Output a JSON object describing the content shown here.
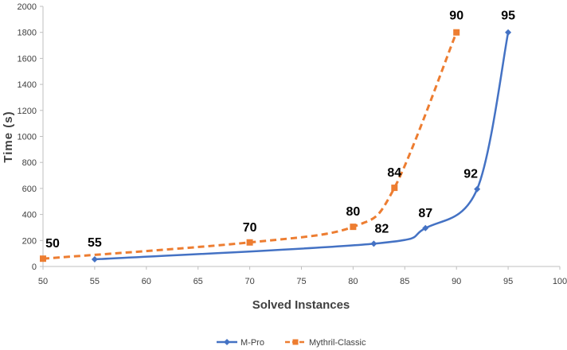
{
  "chart_data": {
    "type": "line",
    "title": "",
    "xlabel": "Solved Instances",
    "ylabel": "Time (s)",
    "xlim": [
      50,
      100
    ],
    "ylim": [
      0,
      2000
    ],
    "x_ticks": [
      50,
      55,
      60,
      65,
      70,
      75,
      80,
      85,
      90,
      95,
      100
    ],
    "y_ticks": [
      0,
      200,
      400,
      600,
      800,
      1000,
      1200,
      1400,
      1600,
      1800,
      2000
    ],
    "grid": false,
    "smooth": true,
    "legend_position": "bottom",
    "series": [
      {
        "name": "M-Pro",
        "color": "#4472c4",
        "line_style": "solid",
        "marker": "diamond",
        "points": [
          {
            "x": 55,
            "y": 55,
            "label": "55"
          },
          {
            "x": 82,
            "y": 175,
            "label": "82"
          },
          {
            "x": 87,
            "y": 295,
            "label": "87"
          },
          {
            "x": 92,
            "y": 595,
            "label": "92"
          },
          {
            "x": 95,
            "y": 1800,
            "label": "95"
          }
        ]
      },
      {
        "name": "Mythril-Classic",
        "color": "#ed7d31",
        "line_style": "dashed",
        "marker": "square",
        "points": [
          {
            "x": 50,
            "y": 60,
            "label": "50"
          },
          {
            "x": 70,
            "y": 185,
            "label": "70"
          },
          {
            "x": 80,
            "y": 305,
            "label": "80"
          },
          {
            "x": 84,
            "y": 605,
            "label": "84"
          },
          {
            "x": 90,
            "y": 1800,
            "label": "90"
          }
        ]
      }
    ]
  }
}
